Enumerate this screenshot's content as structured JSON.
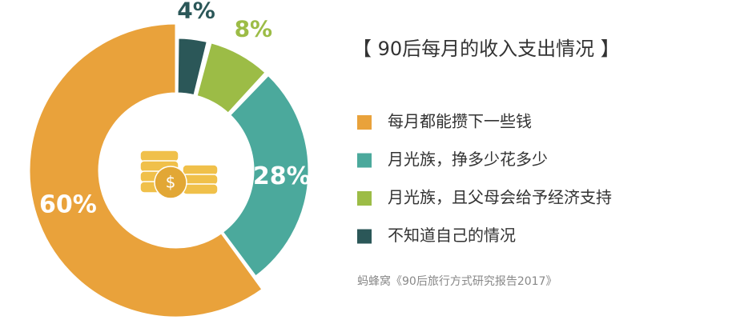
{
  "chart_data": {
    "type": "donut",
    "title": "【 90后每月的收入支出情况 】",
    "source": "蚂蜂窝《90后旅行方式研究报告2017》",
    "series": [
      {
        "name": "每月都能攒下一些钱",
        "color": "#e9a23b",
        "values": [
          60
        ],
        "value_labels": [
          "60%"
        ]
      },
      {
        "name": "月光族，挣多少花多少",
        "color": "#4ba99c",
        "values": [
          28
        ],
        "value_labels": [
          "28%"
        ]
      },
      {
        "name": "月光族，且父母会给予经济支持",
        "color": "#9cbc46",
        "values": [
          8
        ],
        "value_labels": [
          "8%"
        ]
      },
      {
        "name": "不知道自己的情况",
        "color": "#2b5758",
        "values": [
          4
        ],
        "value_labels": [
          "4%"
        ]
      }
    ],
    "legend": "right"
  }
}
